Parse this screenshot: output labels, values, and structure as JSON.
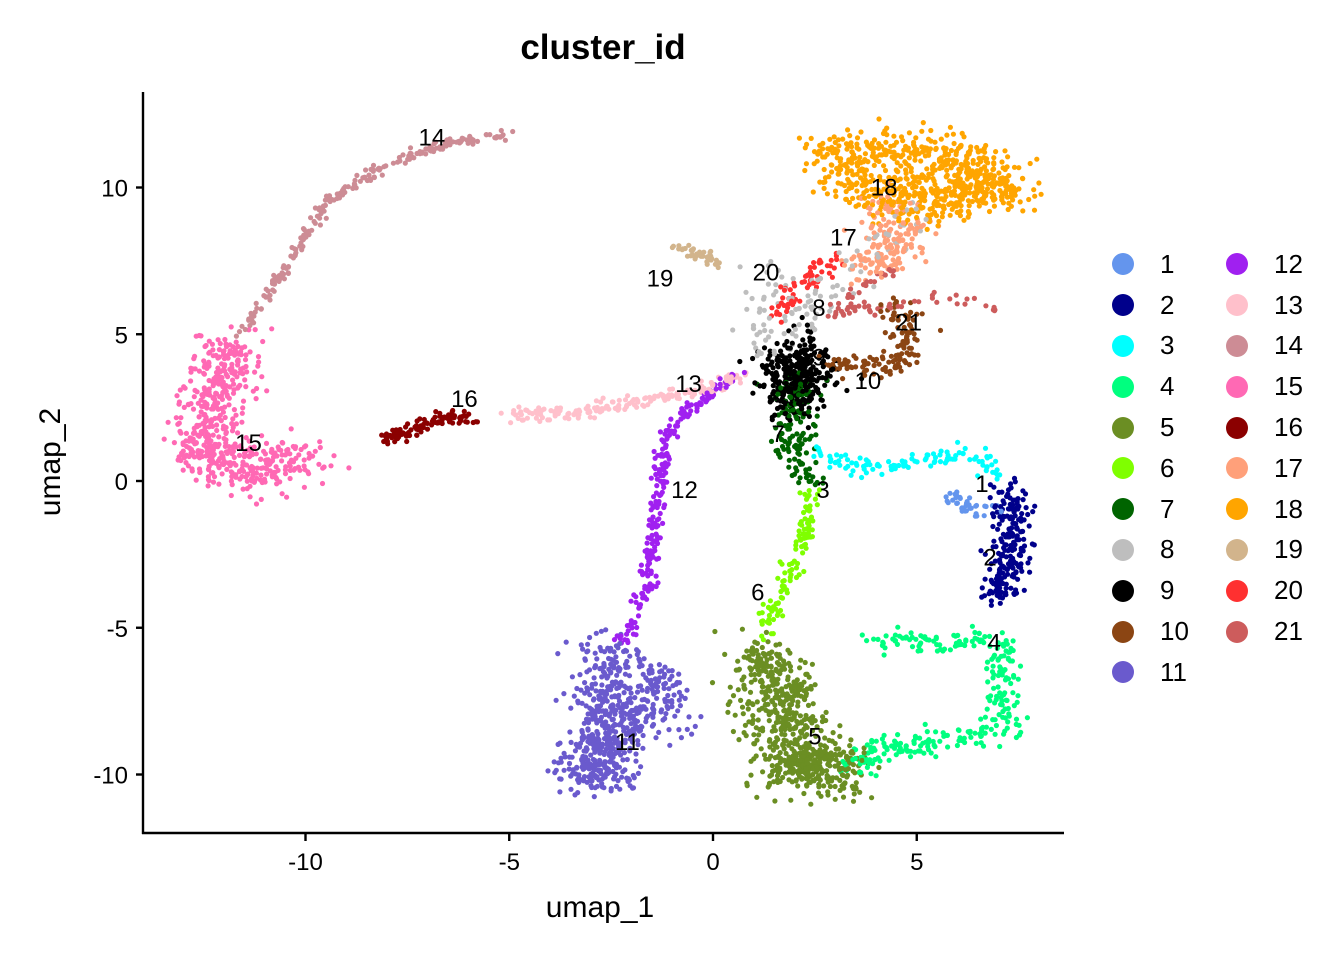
{
  "chart_data": {
    "type": "scatter",
    "title": "cluster_id",
    "xlabel": "umap_1",
    "ylabel": "umap_2",
    "xlim": [
      -14.1,
      8.6
    ],
    "ylim": [
      -11.9,
      13.0
    ],
    "xticks": [
      -10,
      -5,
      0,
      5
    ],
    "yticks": [
      -10,
      -5,
      0,
      5,
      10
    ],
    "grid": false,
    "legend_position": "right",
    "legend_title": "",
    "series": [
      {
        "name": "1",
        "color": "#6495ED",
        "label_pos": [
          6.6,
          -0.1
        ],
        "shape": [
          [
            5.6,
            -0.4
          ],
          [
            6.3,
            -0.9
          ],
          [
            7.0,
            -1.0
          ]
        ],
        "n": 40,
        "spread": 0.15
      },
      {
        "name": "2",
        "color": "#00008B",
        "label_pos": [
          6.8,
          -2.6
        ],
        "shape": [
          [
            7.2,
            -0.3
          ],
          [
            7.4,
            -1.5
          ],
          [
            7.3,
            -2.8
          ],
          [
            7.0,
            -4.0
          ]
        ],
        "n": 220,
        "spread": 0.22
      },
      {
        "name": "3",
        "color": "#00FFFF",
        "label_pos": [
          2.7,
          -0.3
        ],
        "shape": [
          [
            2.4,
            1.1
          ],
          [
            3.5,
            0.5
          ],
          [
            4.5,
            0.5
          ],
          [
            5.3,
            0.8
          ],
          [
            6.2,
            0.9
          ],
          [
            7.0,
            0.3
          ]
        ],
        "n": 110,
        "spread": 0.15
      },
      {
        "name": "4",
        "color": "#00FF7F",
        "label_pos": [
          6.9,
          -5.5
        ],
        "shape": [
          [
            4.0,
            -5.5
          ],
          [
            5.5,
            -5.5
          ],
          [
            7.0,
            -5.4
          ],
          [
            7.1,
            -7.0
          ],
          [
            7.1,
            -8.5
          ],
          [
            5.5,
            -8.8
          ],
          [
            4.0,
            -9.2
          ],
          [
            3.2,
            -9.7
          ]
        ],
        "n": 300,
        "spread": 0.22
      },
      {
        "name": "5",
        "color": "#6B8E23",
        "label_pos": [
          2.5,
          -8.7
        ],
        "shape": [
          [
            1.2,
            -5.8
          ],
          [
            1.5,
            -7.2
          ],
          [
            1.8,
            -8.5
          ],
          [
            2.3,
            -9.6
          ],
          [
            3.3,
            -9.8
          ],
          [
            1.5,
            -9.8
          ]
        ],
        "n": 650,
        "spread": 0.45
      },
      {
        "name": "6",
        "color": "#7FFF00",
        "label_pos": [
          1.1,
          -3.8
        ],
        "shape": [
          [
            2.4,
            -0.3
          ],
          [
            2.3,
            -1.8
          ],
          [
            1.8,
            -3.2
          ],
          [
            1.4,
            -4.5
          ],
          [
            1.3,
            -5.3
          ]
        ],
        "n": 110,
        "spread": 0.12
      },
      {
        "name": "7",
        "color": "#006400",
        "label_pos": [
          1.6,
          1.6
        ],
        "shape": [
          [
            2.1,
            3.5
          ],
          [
            2.0,
            2.4
          ],
          [
            2.1,
            1.0
          ],
          [
            2.3,
            0.2
          ]
        ],
        "n": 140,
        "spread": 0.28
      },
      {
        "name": "8",
        "color": "#BEBEBE",
        "label_pos": [
          2.6,
          5.9
        ],
        "shape": [
          [
            1.5,
            7.3
          ],
          [
            1.2,
            6.0
          ],
          [
            1.3,
            4.6
          ],
          [
            4.5,
            8.5
          ],
          [
            5.0,
            9.4
          ]
        ],
        "n": 120,
        "spread": 0.3
      },
      {
        "name": "9",
        "color": "#000000",
        "label_pos": [
          2.6,
          4.2
        ],
        "shape": [
          [
            2.3,
            4.8
          ],
          [
            2.1,
            3.5
          ],
          [
            2.0,
            2.5
          ],
          [
            1.6,
            4.0
          ],
          [
            2.8,
            3.6
          ]
        ],
        "n": 320,
        "spread": 0.32
      },
      {
        "name": "10",
        "color": "#8B4513",
        "label_pos": [
          3.8,
          3.4
        ],
        "shape": [
          [
            3.0,
            4.0
          ],
          [
            4.0,
            3.9
          ],
          [
            4.7,
            4.2
          ],
          [
            4.8,
            5.5
          ],
          [
            4.3,
            6.0
          ]
        ],
        "n": 130,
        "spread": 0.22
      },
      {
        "name": "11",
        "color": "#6A5ACD",
        "label_pos": [
          -2.1,
          -8.9
        ],
        "shape": [
          [
            -2.6,
            -5.6
          ],
          [
            -2.6,
            -7.2
          ],
          [
            -2.9,
            -9.5
          ],
          [
            -2.4,
            -10.0
          ],
          [
            -3.4,
            -10.0
          ],
          [
            -1.1,
            -6.8
          ]
        ],
        "n": 600,
        "spread": 0.4
      },
      {
        "name": "12",
        "color": "#A020F0",
        "label_pos": [
          -0.7,
          -0.3
        ],
        "shape": [
          [
            0.7,
            3.7
          ],
          [
            -0.5,
            2.6
          ],
          [
            -1.2,
            1.5
          ],
          [
            -1.4,
            -1.5
          ],
          [
            -1.6,
            -3.5
          ],
          [
            -2.0,
            -5.1
          ],
          [
            -2.3,
            -5.5
          ]
        ],
        "n": 230,
        "spread": 0.1
      },
      {
        "name": "13",
        "color": "#FFC0CB",
        "label_pos": [
          -0.6,
          3.3
        ],
        "shape": [
          [
            -5.0,
            2.2
          ],
          [
            -3.0,
            2.4
          ],
          [
            -1.5,
            2.8
          ],
          [
            0.0,
            3.2
          ],
          [
            0.8,
            3.7
          ]
        ],
        "n": 170,
        "spread": 0.12
      },
      {
        "name": "14",
        "color": "#CD8C95",
        "label_pos": [
          -6.9,
          11.7
        ],
        "shape": [
          [
            -4.9,
            11.8
          ],
          [
            -6.5,
            11.5
          ],
          [
            -8.0,
            10.8
          ],
          [
            -9.5,
            9.5
          ],
          [
            -10.5,
            7.2
          ],
          [
            -11.4,
            5.5
          ],
          [
            -11.6,
            5.0
          ]
        ],
        "n": 220,
        "spread": 0.08
      },
      {
        "name": "15",
        "color": "#FF69B4",
        "label_pos": [
          -11.4,
          1.3
        ],
        "shape": [
          [
            -11.8,
            4.8
          ],
          [
            -12.3,
            2.5
          ],
          [
            -12.5,
            1.0
          ],
          [
            -12.0,
            0.2
          ],
          [
            -11.0,
            0.5
          ],
          [
            -9.8,
            0.8
          ]
        ],
        "n": 550,
        "spread": 0.42
      },
      {
        "name": "16",
        "color": "#8B0000",
        "label_pos": [
          -6.1,
          2.8
        ],
        "shape": [
          [
            -8.1,
            1.4
          ],
          [
            -7.2,
            1.8
          ],
          [
            -6.5,
            2.2
          ],
          [
            -5.8,
            2.1
          ]
        ],
        "n": 100,
        "spread": 0.1
      },
      {
        "name": "17",
        "color": "#FFA07A",
        "label_pos": [
          3.2,
          8.3
        ],
        "shape": [
          [
            4.3,
            9.8
          ],
          [
            4.2,
            8.5
          ],
          [
            3.7,
            7.3
          ],
          [
            4.4,
            7.6
          ],
          [
            5.2,
            8.8
          ]
        ],
        "n": 170,
        "spread": 0.3
      },
      {
        "name": "18",
        "color": "#FFA500",
        "label_pos": [
          4.2,
          10.0
        ],
        "shape": [
          [
            2.8,
            11.0
          ],
          [
            4.3,
            11.3
          ],
          [
            6.0,
            11.0
          ],
          [
            7.3,
            10.0
          ],
          [
            5.5,
            9.5
          ],
          [
            3.0,
            10.2
          ]
        ],
        "n": 700,
        "spread": 0.4
      },
      {
        "name": "19",
        "color": "#D2B48C",
        "label_pos": [
          -1.3,
          6.9
        ],
        "shape": [
          [
            -0.9,
            7.9
          ],
          [
            -0.3,
            7.7
          ],
          [
            0.1,
            7.4
          ]
        ],
        "n": 40,
        "spread": 0.1
      },
      {
        "name": "20",
        "color": "#FF3030",
        "label_pos": [
          1.3,
          7.1
        ],
        "shape": [
          [
            2.3,
            7.3
          ],
          [
            3.0,
            7.4
          ],
          [
            1.9,
            6.5
          ],
          [
            1.7,
            5.6
          ]
        ],
        "n": 60,
        "spread": 0.15
      },
      {
        "name": "21",
        "color": "#CD5C5C",
        "label_pos": [
          4.8,
          5.4
        ],
        "shape": [
          [
            4.5,
            7.3
          ],
          [
            3.9,
            6.8
          ],
          [
            3.4,
            6.3
          ],
          [
            2.8,
            5.6
          ],
          [
            5.3,
            6.3
          ],
          [
            7.2,
            5.9
          ]
        ],
        "n": 70,
        "spread": 0.12
      },
      {
        "name": "11",
        "color": "#6A5ACD",
        "label_pos": null,
        "shape": [
          [
            -2.3,
            -5.6
          ],
          [
            -1.4,
            -6.5
          ],
          [
            -0.8,
            -7.8
          ],
          [
            -0.6,
            -8.6
          ]
        ],
        "n": 30,
        "spread": 0.15
      }
    ]
  },
  "legend": {
    "items": [
      {
        "label": "1",
        "color": "#6495ED"
      },
      {
        "label": "2",
        "color": "#00008B"
      },
      {
        "label": "3",
        "color": "#00FFFF"
      },
      {
        "label": "4",
        "color": "#00FF7F"
      },
      {
        "label": "5",
        "color": "#6B8E23"
      },
      {
        "label": "6",
        "color": "#7FFF00"
      },
      {
        "label": "7",
        "color": "#006400"
      },
      {
        "label": "8",
        "color": "#BEBEBE"
      },
      {
        "label": "9",
        "color": "#000000"
      },
      {
        "label": "10",
        "color": "#8B4513"
      },
      {
        "label": "11",
        "color": "#6A5ACD"
      },
      {
        "label": "12",
        "color": "#A020F0"
      },
      {
        "label": "13",
        "color": "#FFC0CB"
      },
      {
        "label": "14",
        "color": "#CD8C95"
      },
      {
        "label": "15",
        "color": "#FF69B4"
      },
      {
        "label": "16",
        "color": "#8B0000"
      },
      {
        "label": "17",
        "color": "#FFA07A"
      },
      {
        "label": "18",
        "color": "#FFA500"
      },
      {
        "label": "19",
        "color": "#D2B48C"
      },
      {
        "label": "20",
        "color": "#FF3030"
      },
      {
        "label": "21",
        "color": "#CD5C5C"
      }
    ]
  }
}
